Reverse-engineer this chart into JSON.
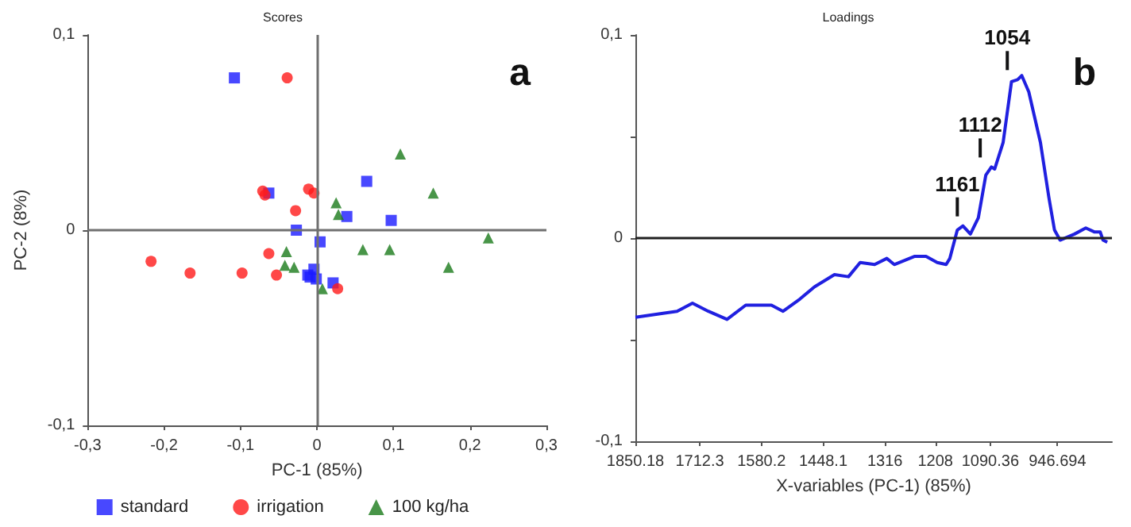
{
  "chart_data": [
    {
      "type": "scatter",
      "title": "Scores",
      "xlabel": "PC-1 (85%)",
      "ylabel": "PC-2 (8%)",
      "annotations": [
        "a"
      ],
      "legend": "bottom",
      "grid": false,
      "xlim": [
        -0.3,
        0.3
      ],
      "ylim": [
        -0.1,
        0.1
      ],
      "xticks": [
        {
          "value": -0.3,
          "label": "-0,3"
        },
        {
          "value": -0.2,
          "label": "-0,2"
        },
        {
          "value": -0.1,
          "label": "-0,1"
        },
        0,
        {
          "value": 0.1,
          "label": "0,1"
        },
        {
          "value": 0.2,
          "label": "0,2"
        },
        {
          "value": 0.3,
          "label": "0,3"
        }
      ],
      "yticks": [
        {
          "value": -0.1,
          "label": "-0,1"
        },
        0,
        {
          "value": 0.1,
          "label": "0,1"
        }
      ],
      "ref_lines": [
        {
          "axis": "x",
          "value": 0,
          "color": "#707070"
        },
        {
          "axis": "y",
          "value": 0,
          "color": "#707070"
        }
      ],
      "series": [
        {
          "name": "standard",
          "color": "#1a1aff",
          "marker": "square",
          "x": [
            -0.108,
            -0.063,
            0.065,
            0.039,
            0.097,
            -0.027,
            0.004,
            -0.004,
            -0.012,
            -0.009,
            -0.001,
            0.021
          ],
          "values": [
            0.078,
            0.019,
            0.025,
            0.007,
            0.005,
            0,
            -0.006,
            -0.02,
            -0.023,
            -0.024,
            -0.025,
            -0.027
          ]
        },
        {
          "name": "irrigation",
          "color": "#ff1a1a",
          "marker": "circle",
          "x": [
            -0.039,
            -0.071,
            -0.068,
            -0.011,
            -0.004,
            -0.028,
            -0.063,
            -0.217,
            -0.166,
            -0.098,
            -0.053,
            0.027
          ],
          "values": [
            0.078,
            0.02,
            0.018,
            0.021,
            0.019,
            0.01,
            -0.012,
            -0.016,
            -0.022,
            -0.022,
            -0.023,
            -0.03
          ]
        },
        {
          "name": "100 kg/ha",
          "color": "#1a7a1a",
          "marker": "triangle",
          "x": [
            0.109,
            0.152,
            0.025,
            0.028,
            0.224,
            -0.04,
            -0.042,
            -0.03,
            0.06,
            0.095,
            0.172,
            0.007
          ],
          "values": [
            0.039,
            0.019,
            0.014,
            0.008,
            -0.004,
            -0.011,
            -0.018,
            -0.019,
            -0.01,
            -0.01,
            -0.019,
            -0.03
          ]
        }
      ]
    },
    {
      "type": "line",
      "title": "Loadings",
      "xlabel": "X-variables (PC-1) (85%)",
      "annotations": [
        "b",
        {
          "text": "1161",
          "x": 1161,
          "y": 0.006
        },
        {
          "text": "1112",
          "x": 1112,
          "y": 0.035
        },
        {
          "text": "1054",
          "x": 1054,
          "y": 0.078
        }
      ],
      "legend": false,
      "grid": false,
      "marker": "none",
      "xlim": [
        1850.18,
        830
      ],
      "ylim": [
        -0.1,
        0.1
      ],
      "xticks": [
        1850.18,
        1712.3,
        1580.2,
        1448.1,
        1316,
        1208,
        1090.36,
        946.694
      ],
      "yticks": [
        {
          "value": -0.1,
          "label": "-0,1"
        },
        {
          "value": -0.05,
          "label": null
        },
        0,
        {
          "value": 0.05,
          "label": null
        },
        {
          "value": 0.1,
          "label": "0,1"
        }
      ],
      "ref_lines": [
        {
          "axis": "y",
          "value": 0,
          "color": "#202020"
        }
      ],
      "series": [
        {
          "color": "#2020e0",
          "x": [
            1850,
            1791,
            1761,
            1728,
            1694,
            1654,
            1614,
            1559,
            1534,
            1498,
            1467,
            1424,
            1394,
            1369,
            1338,
            1312,
            1296,
            1253,
            1228,
            1204,
            1185,
            1177,
            1161,
            1149,
            1133,
            1116,
            1100,
            1088,
            1081,
            1063,
            1045,
            1032,
            1023,
            1008,
            983,
            965,
            953,
            941,
            910,
            886,
            867,
            855,
            849,
            840
          ],
          "values": [
            -0.039,
            -0.037,
            -0.036,
            -0.032,
            -0.036,
            -0.04,
            -0.033,
            -0.033,
            -0.036,
            -0.03,
            -0.024,
            -0.018,
            -0.019,
            -0.012,
            -0.013,
            -0.01,
            -0.013,
            -0.009,
            -0.009,
            -0.012,
            -0.013,
            -0.01,
            0.004,
            0.006,
            0.002,
            0.01,
            0.031,
            0.035,
            0.034,
            0.047,
            0.077,
            0.078,
            0.08,
            0.072,
            0.047,
            0.02,
            0.004,
            -0.001,
            0.002,
            0.005,
            0.003,
            0.003,
            -0.001,
            -0.002
          ]
        }
      ]
    }
  ]
}
